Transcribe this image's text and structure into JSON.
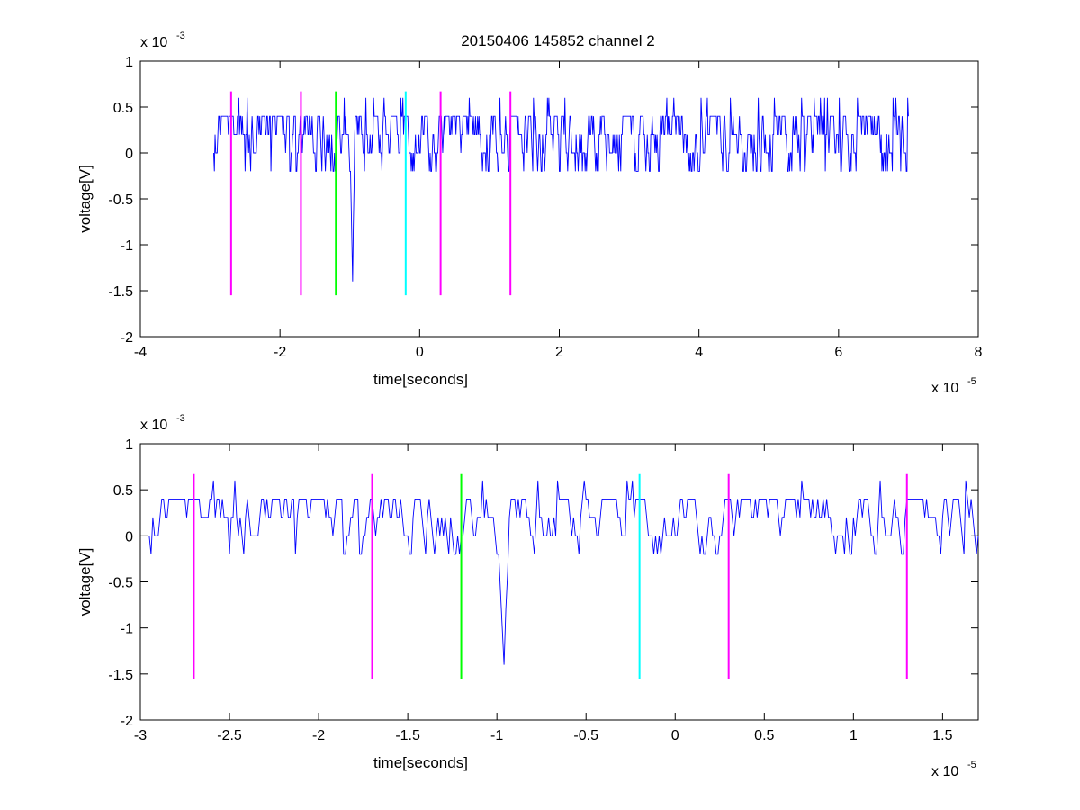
{
  "title": "20150406 145852 channel 2",
  "colors": {
    "trace": "#0000ff",
    "marker_magenta": "#ff00ff",
    "marker_green": "#00ff00",
    "marker_cyan": "#00ffff",
    "axes": "#000000",
    "background": "#ffffff"
  },
  "chart_data": [
    {
      "type": "line",
      "title": "20150406 145852 channel 2",
      "xlabel": "time[seconds]",
      "ylabel": "voltage[V]",
      "x_multiplier": "x 10",
      "x_exponent": "-5",
      "y_multiplier": "x 10",
      "y_exponent": "-3",
      "xlim": [
        -4e-05,
        8e-05
      ],
      "ylim": [
        -0.002,
        0.001
      ],
      "xticks": [
        -4e-05,
        -2e-05,
        0,
        2e-05,
        4e-05,
        6e-05,
        8e-05
      ],
      "xtick_labels": [
        "-4",
        "-2",
        "0",
        "2",
        "4",
        "6",
        "8"
      ],
      "yticks": [
        -0.002,
        -0.0015,
        -0.001,
        -0.0005,
        0,
        0.0005,
        0.001
      ],
      "ytick_labels": [
        "-2",
        "-1.5",
        "-1",
        "-0.5",
        "0",
        "0.5",
        "1"
      ],
      "grid": false,
      "series": [
        {
          "x_range": [
            -2.95e-05,
            7e-05
          ],
          "sample_step": 1e-07,
          "quantization": 0.0002,
          "baseline": 0.0002,
          "spike": {
            "x_start": -1e-05,
            "x_min": -9.6e-06,
            "x_end": -9.3e-06,
            "min": -0.0014
          }
        }
      ],
      "markers": [
        {
          "x": -2.7e-05,
          "color": "magenta",
          "y_range": [
            -0.00155,
            0.00067
          ]
        },
        {
          "x": -1.7e-05,
          "color": "magenta",
          "y_range": [
            -0.00155,
            0.00067
          ]
        },
        {
          "x": -1.2e-05,
          "color": "green",
          "y_range": [
            -0.00155,
            0.00067
          ]
        },
        {
          "x": -2e-06,
          "color": "cyan",
          "y_range": [
            -0.00155,
            0.00067
          ]
        },
        {
          "x": 3e-06,
          "color": "magenta",
          "y_range": [
            -0.00155,
            0.00067
          ]
        },
        {
          "x": 1.3e-05,
          "color": "magenta",
          "y_range": [
            -0.00155,
            0.00067
          ]
        }
      ]
    },
    {
      "type": "line",
      "title": "",
      "xlabel": "time[seconds]",
      "ylabel": "voltage[V]",
      "x_multiplier": "x 10",
      "x_exponent": "-5",
      "y_multiplier": "x 10",
      "y_exponent": "-3",
      "xlim": [
        -3e-05,
        1.7e-05
      ],
      "ylim": [
        -0.002,
        0.001
      ],
      "xticks": [
        -3e-05,
        -2.5e-05,
        -2e-05,
        -1.5e-05,
        -1e-05,
        -5e-06,
        0,
        5e-06,
        1e-05,
        1.5e-05
      ],
      "xtick_labels": [
        "-3",
        "-2.5",
        "-2",
        "-1.5",
        "-1",
        "-0.5",
        "0",
        "0.5",
        "1",
        "1.5"
      ],
      "yticks": [
        -0.002,
        -0.0015,
        -0.001,
        -0.0005,
        0,
        0.0005,
        0.001
      ],
      "ytick_labels": [
        "-2",
        "-1.5",
        "-1",
        "-0.5",
        "0",
        "0.5",
        "1"
      ],
      "grid": false,
      "series": [
        {
          "x_range": [
            -2.95e-05,
            1.7e-05
          ],
          "sample_step": 1e-07,
          "quantization": 0.0002,
          "baseline": 0.0002,
          "spike": {
            "x_start": -1e-05,
            "x_min": -9.6e-06,
            "x_end": -9.3e-06,
            "min": -0.0014
          }
        }
      ],
      "markers": [
        {
          "x": -2.7e-05,
          "color": "magenta",
          "y_range": [
            -0.00155,
            0.00067
          ]
        },
        {
          "x": -1.7e-05,
          "color": "magenta",
          "y_range": [
            -0.00155,
            0.00067
          ]
        },
        {
          "x": -1.2e-05,
          "color": "green",
          "y_range": [
            -0.00155,
            0.00067
          ]
        },
        {
          "x": -2e-06,
          "color": "cyan",
          "y_range": [
            -0.00155,
            0.00067
          ]
        },
        {
          "x": 3e-06,
          "color": "magenta",
          "y_range": [
            -0.00155,
            0.00067
          ]
        },
        {
          "x": 1.3e-05,
          "color": "magenta",
          "y_range": [
            -0.00155,
            0.00067
          ]
        }
      ]
    }
  ]
}
